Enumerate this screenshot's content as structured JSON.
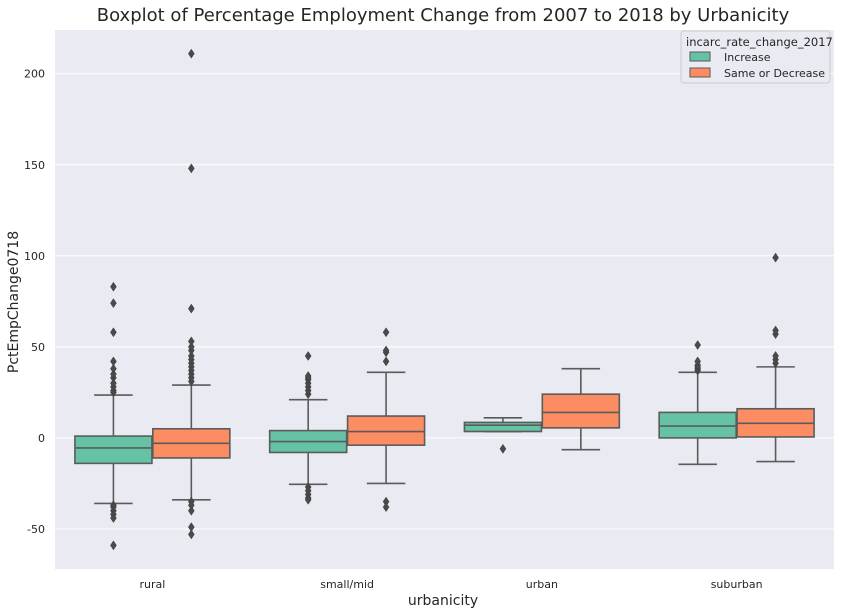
{
  "chart_data": {
    "type": "box",
    "title": "Boxplot of Percentage Employment Change from 2007 to 2018 by Urbanicity",
    "xlabel": "urbanicity",
    "ylabel": "PctEmpChange0718",
    "ylim": [
      -72,
      224
    ],
    "yticks": [
      -50,
      0,
      50,
      100,
      150,
      200
    ],
    "categories": [
      "rural",
      "small/mid",
      "urban",
      "suburban"
    ],
    "legend": {
      "title": "incarc_rate_change_2017",
      "position": "top-right"
    },
    "grid": true,
    "background": "#eaeaf2",
    "series": [
      {
        "name": "Increase",
        "color": "#66c2a5",
        "boxes": [
          {
            "whislo": -36,
            "q1": -14,
            "med": -5.5,
            "q3": 1,
            "whishi": 23.5,
            "fliers": [
              25,
              26,
              28,
              30,
              33,
              35,
              38,
              42,
              58,
              74,
              83,
              -37,
              -38,
              -40,
              -42,
              -44,
              -59
            ]
          },
          {
            "whislo": -25.5,
            "q1": -8,
            "med": -2,
            "q3": 4,
            "whishi": 21,
            "fliers": [
              24,
              26,
              28,
              30,
              32,
              33,
              34,
              45,
              -27,
              -29,
              -31,
              -33,
              -34
            ]
          },
          {
            "whislo": 3.5,
            "q1": 3.5,
            "med": 7,
            "q3": 8.5,
            "whishi": 11,
            "fliers": [
              -6
            ]
          },
          {
            "whislo": -14.5,
            "q1": 0,
            "med": 6.5,
            "q3": 14,
            "whishi": 36,
            "fliers": [
              37,
              38,
              39,
              40,
              42,
              51
            ]
          }
        ]
      },
      {
        "name": "Same or Decrease",
        "color": "#fc8d62",
        "boxes": [
          {
            "whislo": -34,
            "q1": -11,
            "med": -3,
            "q3": 5,
            "whishi": 29,
            "fliers": [
              31,
              33,
              35,
              37,
              39,
              41,
              43,
              45,
              48,
              50,
              53,
              71,
              148,
              211,
              -35,
              -37,
              -40,
              -49,
              -53
            ]
          },
          {
            "whislo": -25,
            "q1": -4,
            "med": 3.5,
            "q3": 12,
            "whishi": 36,
            "fliers": [
              42,
              47,
              48,
              58,
              -35,
              -38
            ]
          },
          {
            "whislo": -6.5,
            "q1": 5.5,
            "med": 14,
            "q3": 24,
            "whishi": 38,
            "fliers": []
          },
          {
            "whislo": -13,
            "q1": 0.5,
            "med": 8,
            "q3": 16,
            "whishi": 39,
            "fliers": [
              41,
              43,
              45,
              57,
              59,
              99
            ]
          }
        ]
      }
    ]
  }
}
